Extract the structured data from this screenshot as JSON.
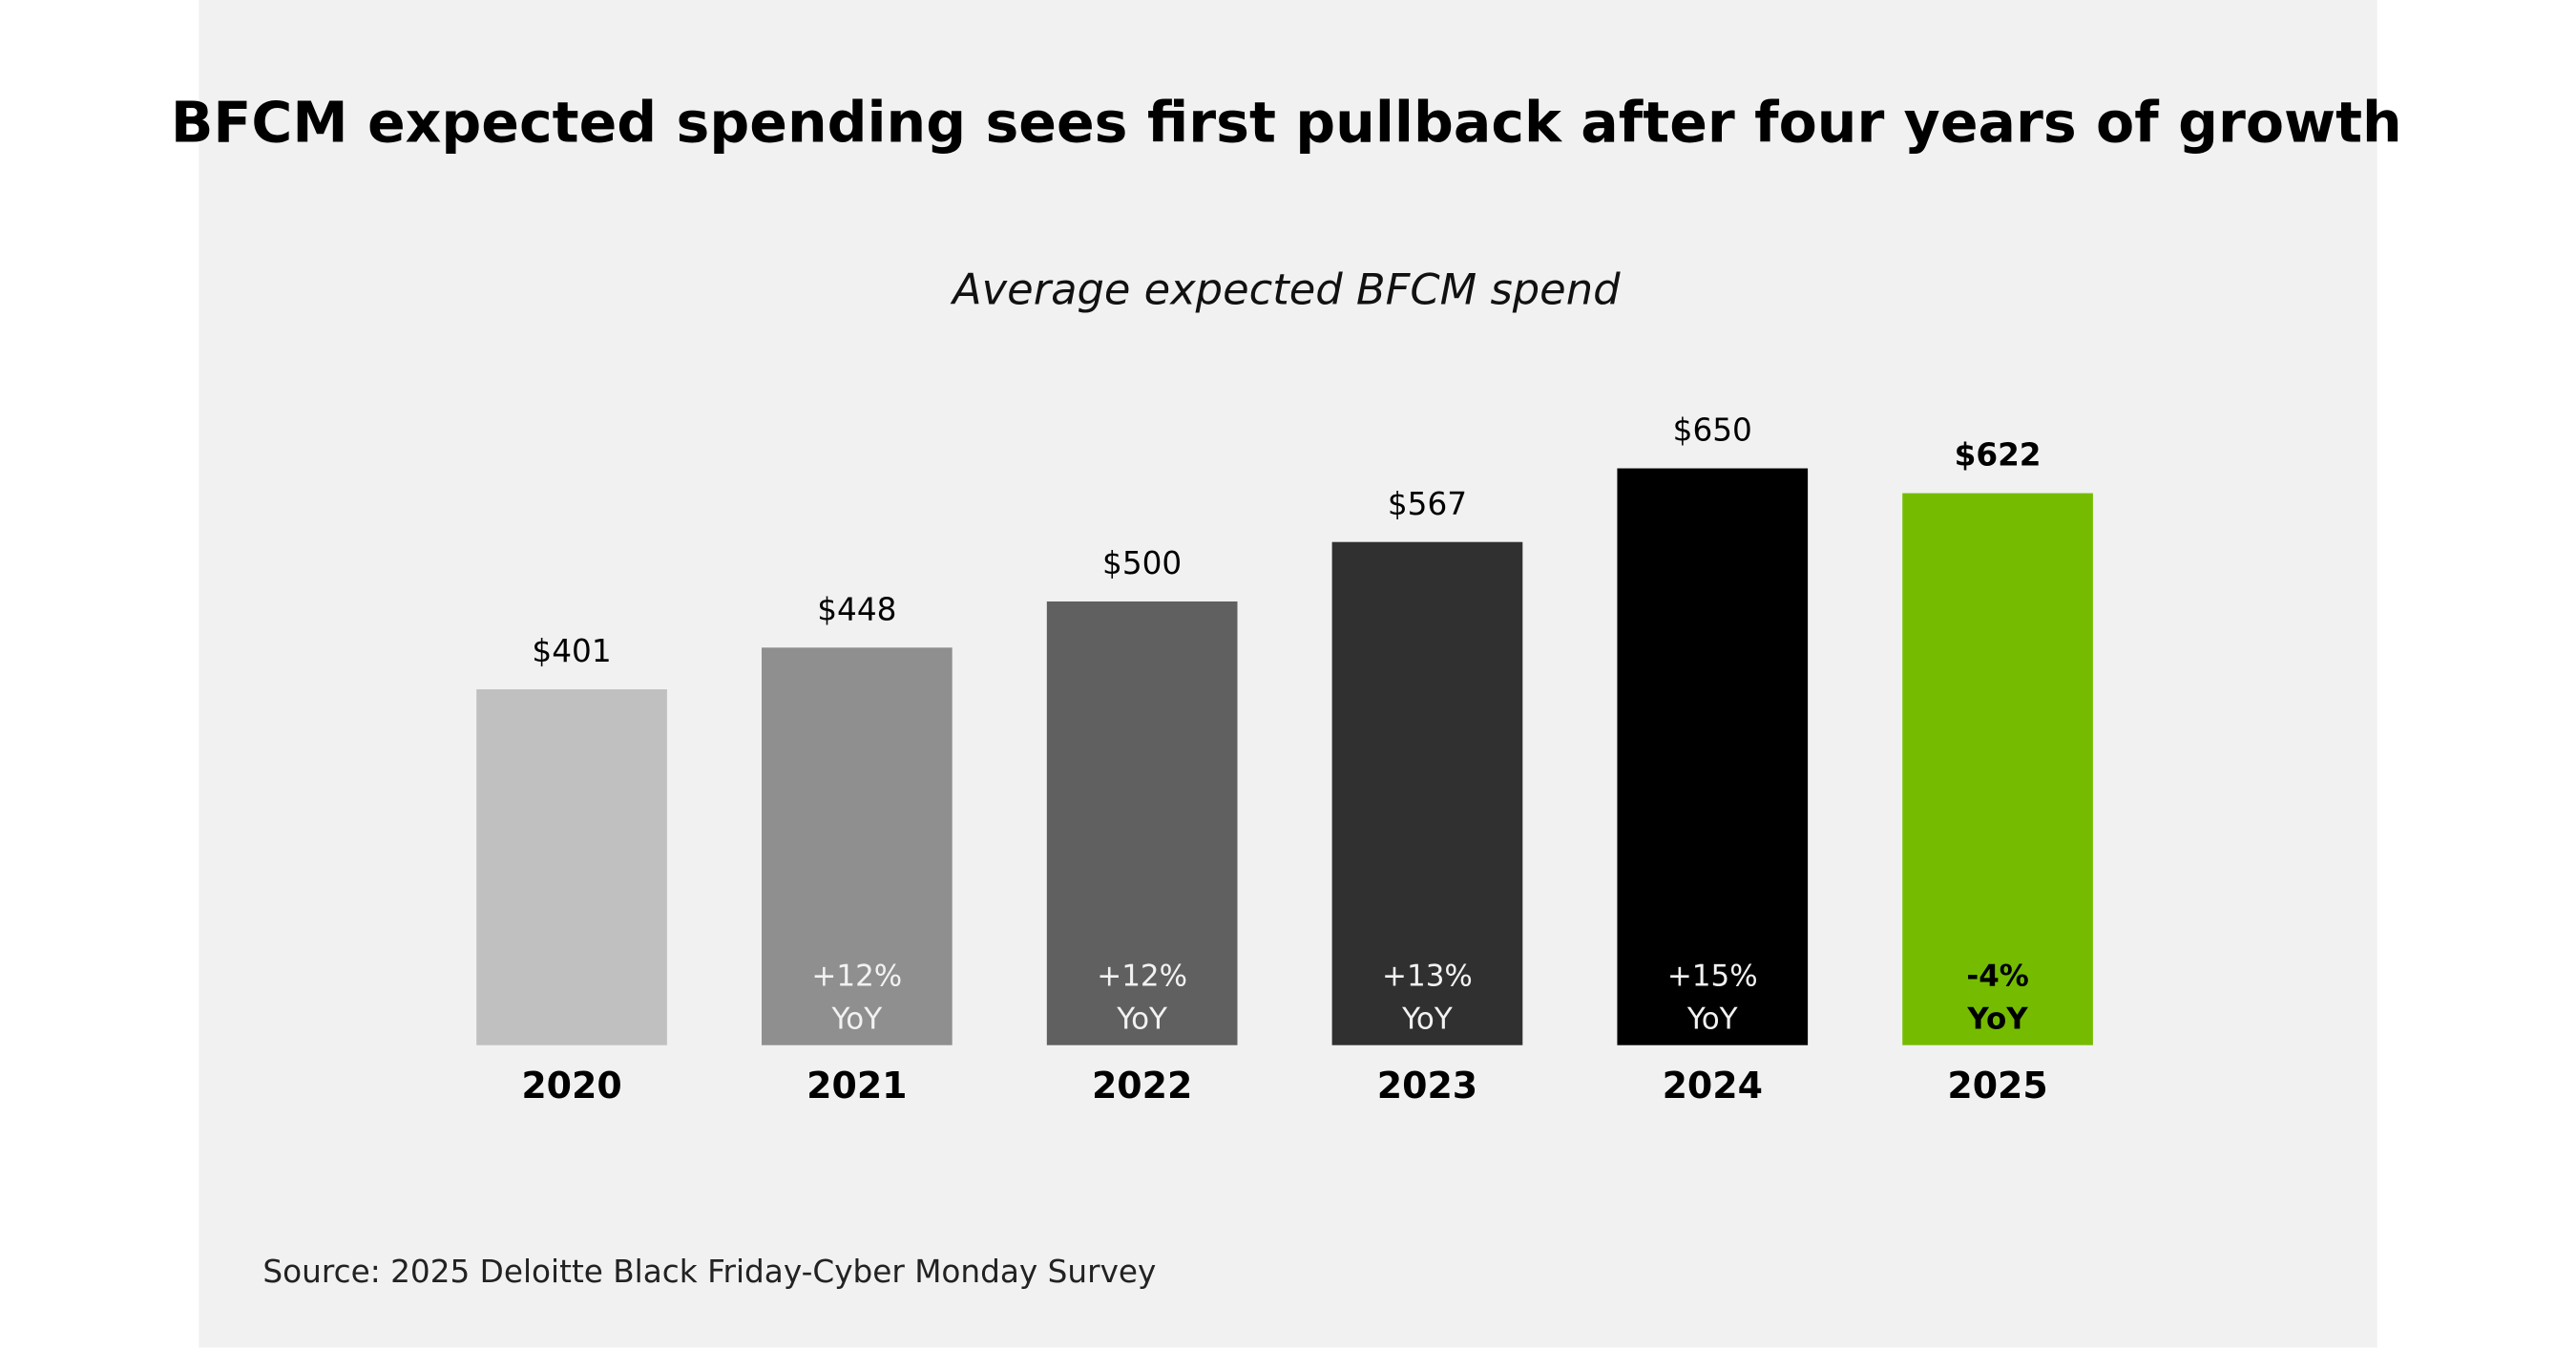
{
  "chart_data": {
    "type": "bar",
    "title": "BFCM expected spending sees first pullback after four years of growth",
    "subtitle": "Average expected BFCM spend",
    "categories": [
      "2020",
      "2021",
      "2022",
      "2023",
      "2024",
      "2025"
    ],
    "values": [
      401,
      448,
      500,
      567,
      650,
      622
    ],
    "value_labels": [
      "$401",
      "$448",
      "$500",
      "$567",
      "$650",
      "$622"
    ],
    "colors": [
      "#c0c0c0",
      "#8f8f8f",
      "#606060",
      "#303030",
      "#000000",
      "#75bc00"
    ],
    "yoy_labels": [
      null,
      {
        "change": "+12%",
        "unit": "YoY"
      },
      {
        "change": "+12%",
        "unit": "YoY"
      },
      {
        "change": "+13%",
        "unit": "YoY"
      },
      {
        "change": "+15%",
        "unit": "YoY"
      },
      {
        "change": "-4%",
        "unit": "YoY"
      }
    ],
    "source": "Source: 2025 Deloitte Black Friday-Cyber Monday Survey"
  }
}
